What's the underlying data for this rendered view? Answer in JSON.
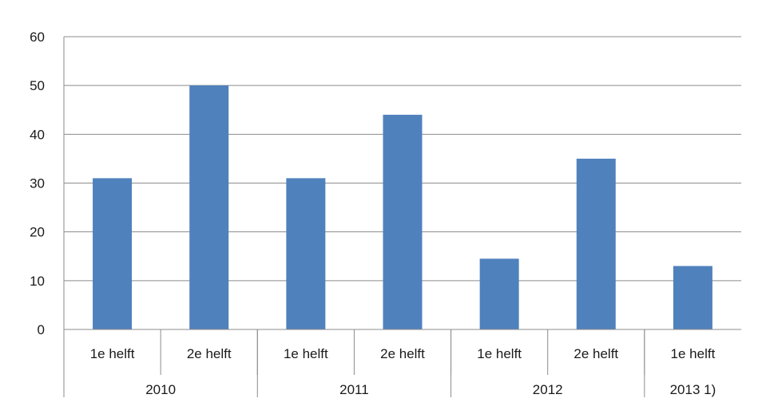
{
  "chart_data": {
    "type": "bar",
    "title": "",
    "xlabel": "",
    "ylabel": "",
    "ylim": [
      0,
      60
    ],
    "yticks": [
      0,
      10,
      20,
      30,
      40,
      50,
      60
    ],
    "grid": true,
    "legend": "none",
    "bar_color": "#4f81bd",
    "grid_color": "#8c8c8c",
    "categories": [
      "1e helft",
      "2e helft",
      "1e helft",
      "2e helft",
      "1e helft",
      "2e helft",
      "1e helft"
    ],
    "groups": [
      {
        "label": "2010",
        "span": 2
      },
      {
        "label": "2011",
        "span": 2
      },
      {
        "label": "2012",
        "span": 2
      },
      {
        "label": "2013 1)",
        "span": 1
      }
    ],
    "series": [
      {
        "values": [
          31,
          50,
          31,
          44,
          14.5,
          35,
          13
        ]
      }
    ]
  }
}
